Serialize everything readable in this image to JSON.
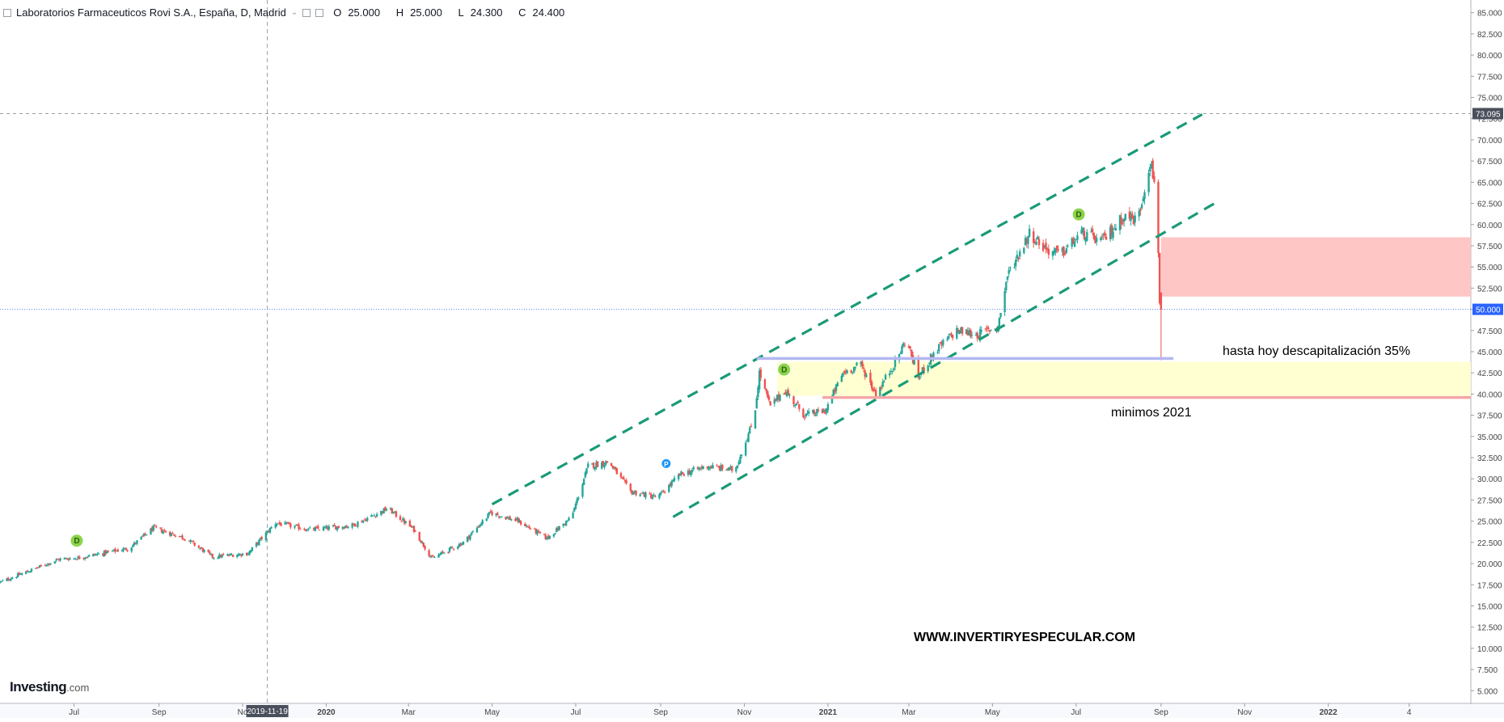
{
  "header": {
    "title": "Laboratorios Farmaceuticos Rovi S.A., España, D, Madrid",
    "ohlc": {
      "open_label": "O",
      "open": "25.000",
      "high_label": "H",
      "high": "25.000",
      "low_label": "L",
      "low": "24.300",
      "close_label": "C",
      "close": "24.400"
    }
  },
  "annotations": {
    "descap": "hasta hoy descapitalización 35%",
    "minimos": "minimos 2021",
    "website": "WWW.INVERTIRYESPECULAR.COM"
  },
  "logo": {
    "brand": "Investing",
    "suffix": ".com"
  },
  "colors": {
    "up": "#26a69a",
    "down": "#ef5350",
    "channel": "#1a9a78",
    "zone_red": "#ffc0c0",
    "zone_yellow": "#ffffcc",
    "line_blue": "#b3b8f0",
    "line_red": "#f4a6a6",
    "price_tag": "#2962ff",
    "dividend": "#8bd44a",
    "earnings": "#2196f3"
  },
  "chart_data": {
    "type": "candlestick",
    "y_axis": {
      "min": 3.5,
      "max": 86.5,
      "ticks": [
        "5.000",
        "7.500",
        "10.000",
        "12.500",
        "15.000",
        "17.500",
        "20.000",
        "22.500",
        "25.000",
        "27.500",
        "30.000",
        "32.500",
        "35.000",
        "37.500",
        "40.000",
        "42.500",
        "45.000",
        "47.500",
        "50.000",
        "52.500",
        "55.000",
        "57.500",
        "60.000",
        "62.500",
        "65.000",
        "67.500",
        "70.000",
        "72.500",
        "75.000",
        "77.500",
        "80.000",
        "82.500",
        "85.000"
      ]
    },
    "x_axis": {
      "start": "2019-05-08",
      "end": "2022-04-15",
      "ticks": [
        {
          "date": "2019-07-01",
          "label": "Jul"
        },
        {
          "date": "2019-09-01",
          "label": "Sep"
        },
        {
          "date": "2019-11-01",
          "label": "No"
        },
        {
          "date": "2020-01-01",
          "label": "2020",
          "bold": true
        },
        {
          "date": "2020-03-01",
          "label": "Mar"
        },
        {
          "date": "2020-05-01",
          "label": "May"
        },
        {
          "date": "2020-07-01",
          "label": "Jul"
        },
        {
          "date": "2020-09-01",
          "label": "Sep"
        },
        {
          "date": "2020-11-01",
          "label": "Nov"
        },
        {
          "date": "2021-01-01",
          "label": "2021",
          "bold": true
        },
        {
          "date": "2021-03-01",
          "label": "Mar"
        },
        {
          "date": "2021-05-01",
          "label": "May"
        },
        {
          "date": "2021-07-01",
          "label": "Jul"
        },
        {
          "date": "2021-09-01",
          "label": "Sep"
        },
        {
          "date": "2021-11-01",
          "label": "Nov"
        },
        {
          "date": "2022-01-01",
          "label": "2022",
          "bold": true
        },
        {
          "date": "2022-03-01",
          "label": "4"
        }
      ]
    },
    "crosshair": {
      "date": "2019-11-19",
      "label": "2019-11-19"
    },
    "price_line": {
      "value": 73.095,
      "label": "73.095"
    },
    "current_price": {
      "value": 50.0,
      "label": "50.000"
    },
    "anchors": [
      [
        "2019-05-08",
        17.8
      ],
      [
        "2019-06-20",
        20.5
      ],
      [
        "2019-07-05",
        20.7
      ],
      [
        "2019-08-10",
        21.8
      ],
      [
        "2019-08-28",
        24.2
      ],
      [
        "2019-09-20",
        23.0
      ],
      [
        "2019-10-10",
        20.8
      ],
      [
        "2019-11-05",
        21.2
      ],
      [
        "2019-11-25",
        24.8
      ],
      [
        "2019-12-20",
        24.0
      ],
      [
        "2020-01-20",
        24.5
      ],
      [
        "2020-02-15",
        26.5
      ],
      [
        "2020-03-05",
        24.0
      ],
      [
        "2020-03-18",
        20.6
      ],
      [
        "2020-04-10",
        22.5
      ],
      [
        "2020-04-30",
        26.0
      ],
      [
        "2020-05-20",
        25.0
      ],
      [
        "2020-06-10",
        23.0
      ],
      [
        "2020-06-28",
        25.5
      ],
      [
        "2020-07-10",
        31.5
      ],
      [
        "2020-07-25",
        32.0
      ],
      [
        "2020-08-10",
        28.5
      ],
      [
        "2020-08-30",
        27.8
      ],
      [
        "2020-09-15",
        30.5
      ],
      [
        "2020-10-05",
        31.5
      ],
      [
        "2020-10-25",
        31.0
      ],
      [
        "2020-11-08",
        37.0
      ],
      [
        "2020-11-12",
        42.5
      ],
      [
        "2020-11-20",
        38.5
      ],
      [
        "2020-11-30",
        40.5
      ],
      [
        "2020-12-15",
        37.5
      ],
      [
        "2020-12-30",
        38.0
      ],
      [
        "2021-01-12",
        42.5
      ],
      [
        "2021-01-25",
        43.5
      ],
      [
        "2021-02-05",
        40.0
      ],
      [
        "2021-02-20",
        44.0
      ],
      [
        "2021-02-27",
        46.5
      ],
      [
        "2021-03-08",
        42.0
      ],
      [
        "2021-03-20",
        45.0
      ],
      [
        "2021-04-05",
        47.5
      ],
      [
        "2021-04-20",
        47.0
      ],
      [
        "2021-05-05",
        48.0
      ],
      [
        "2021-05-12",
        54.0
      ],
      [
        "2021-05-28",
        59.0
      ],
      [
        "2021-06-10",
        57.0
      ],
      [
        "2021-06-20",
        56.5
      ],
      [
        "2021-07-05",
        59.0
      ],
      [
        "2021-07-20",
        58.0
      ],
      [
        "2021-08-05",
        61.0
      ],
      [
        "2021-08-15",
        60.5
      ],
      [
        "2021-08-24",
        67.5
      ],
      [
        "2021-08-27",
        65.0
      ],
      [
        "2021-08-30",
        57.0
      ],
      [
        "2021-08-31",
        51.0
      ],
      [
        "2021-09-01",
        50.0
      ]
    ],
    "channel": {
      "upper": [
        [
          "2020-05-01",
          27.0
        ],
        [
          "2021-10-01",
          73.0
        ]
      ],
      "lower": [
        [
          "2020-09-10",
          25.5
        ],
        [
          "2021-10-10",
          62.5
        ]
      ]
    },
    "zones": [
      {
        "kind": "resistance",
        "from": "2021-09-01",
        "to": "2022-04-15",
        "low": 51.5,
        "high": 58.5
      },
      {
        "kind": "support",
        "from": "2020-11-25",
        "to": "2022-04-15",
        "low": 39.8,
        "high": 43.8
      }
    ],
    "levels": [
      {
        "kind": "blue",
        "value": 44.2,
        "from": "2020-11-10",
        "to": "2021-09-10"
      },
      {
        "kind": "red",
        "value": 39.6,
        "from": "2020-12-28",
        "to": "2022-04-15"
      }
    ],
    "markers": [
      {
        "type": "D",
        "date": "2019-07-03",
        "value": 22.7
      },
      {
        "type": "P",
        "date": "2020-09-05",
        "value": 31.8
      },
      {
        "type": "D",
        "date": "2020-11-30",
        "value": 42.9
      },
      {
        "type": "D",
        "date": "2021-07-03",
        "value": 61.2
      }
    ]
  }
}
